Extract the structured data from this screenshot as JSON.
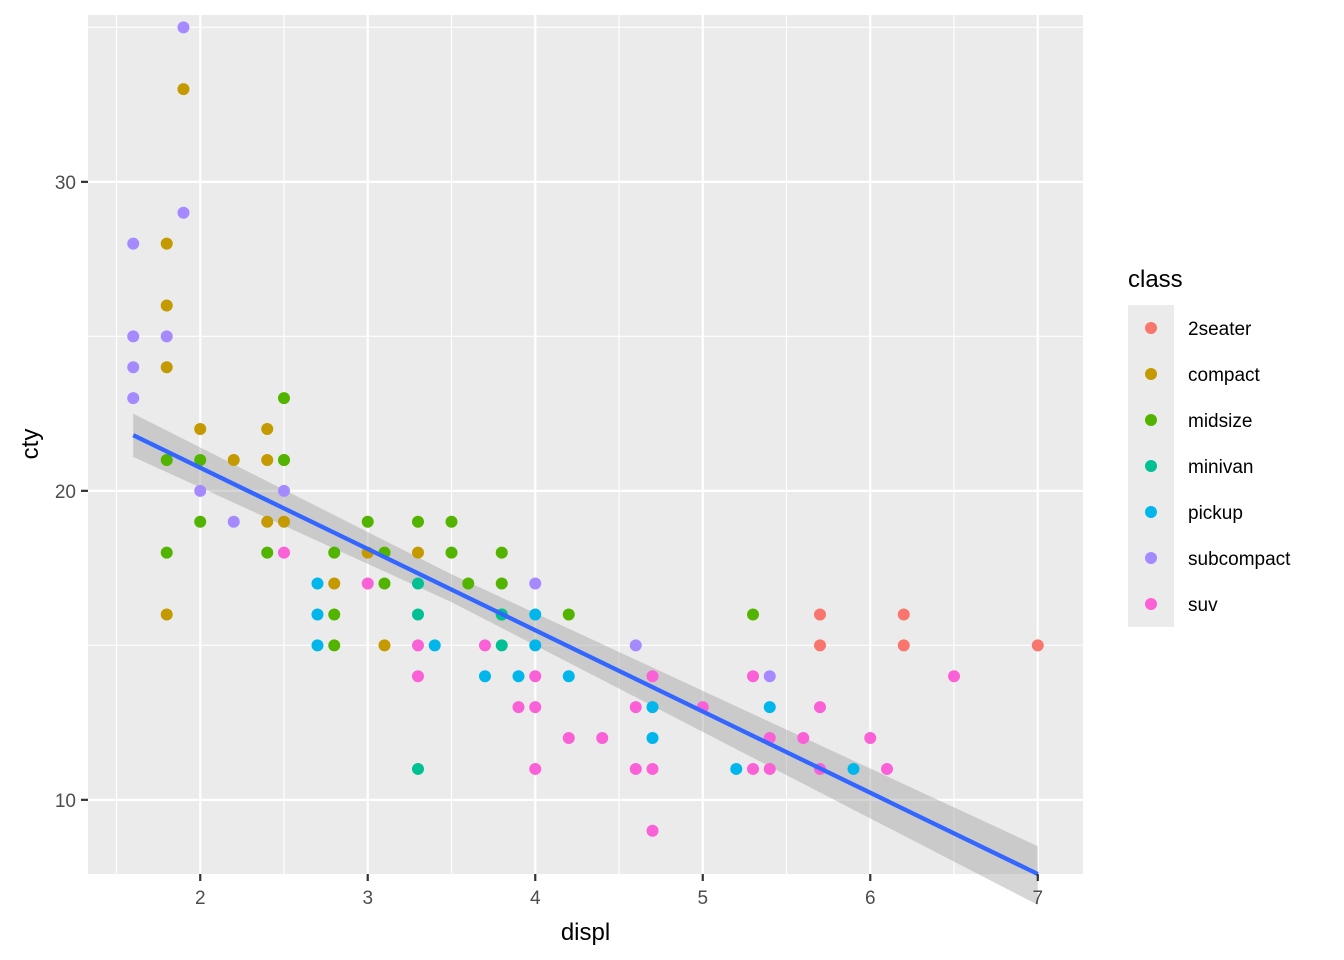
{
  "chart_data": {
    "type": "scatter",
    "xlabel": "displ",
    "ylabel": "cty",
    "xlim": [
      1.33,
      7.27
    ],
    "ylim": [
      7.6,
      35.4
    ],
    "x_ticks": [
      2,
      3,
      4,
      5,
      6,
      7
    ],
    "x_tick_labels": [
      "2",
      "3",
      "4",
      "5",
      "6",
      "7"
    ],
    "y_ticks": [
      10,
      20,
      30
    ],
    "y_tick_labels": [
      "10",
      "20",
      "30"
    ],
    "grid": true,
    "legend": {
      "title": "class",
      "placement": "right"
    },
    "series": [
      {
        "name": "2seater",
        "color": "#F8766D",
        "points": [
          [
            5.7,
            16
          ],
          [
            5.7,
            15
          ],
          [
            6.2,
            16
          ],
          [
            6.2,
            15
          ],
          [
            7.0,
            15
          ]
        ]
      },
      {
        "name": "compact",
        "color": "#C49A00",
        "points": [
          [
            1.8,
            28
          ],
          [
            1.8,
            26
          ],
          [
            1.8,
            24
          ],
          [
            1.8,
            16
          ],
          [
            1.9,
            33
          ],
          [
            2.0,
            22
          ],
          [
            2.2,
            21
          ],
          [
            2.4,
            22
          ],
          [
            2.4,
            21
          ],
          [
            2.4,
            19
          ],
          [
            2.5,
            21
          ],
          [
            2.5,
            19
          ],
          [
            2.8,
            17
          ],
          [
            3.0,
            18
          ],
          [
            3.1,
            15
          ],
          [
            3.3,
            18
          ]
        ]
      },
      {
        "name": "midsize",
        "color": "#53B400",
        "points": [
          [
            1.8,
            21
          ],
          [
            1.8,
            18
          ],
          [
            2.0,
            21
          ],
          [
            2.0,
            19
          ],
          [
            2.4,
            18
          ],
          [
            2.5,
            23
          ],
          [
            2.5,
            21
          ],
          [
            2.8,
            18
          ],
          [
            2.8,
            16
          ],
          [
            2.8,
            15
          ],
          [
            3.0,
            19
          ],
          [
            3.1,
            18
          ],
          [
            3.1,
            17
          ],
          [
            3.3,
            19
          ],
          [
            3.5,
            19
          ],
          [
            3.5,
            18
          ],
          [
            3.6,
            17
          ],
          [
            3.8,
            18
          ],
          [
            3.8,
            17
          ],
          [
            3.8,
            16
          ],
          [
            4.2,
            16
          ],
          [
            5.3,
            16
          ]
        ]
      },
      {
        "name": "minivan",
        "color": "#00C094",
        "points": [
          [
            3.3,
            17
          ],
          [
            3.3,
            16
          ],
          [
            3.3,
            11
          ],
          [
            3.8,
            15
          ],
          [
            3.8,
            16
          ]
        ]
      },
      {
        "name": "pickup",
        "color": "#00B6EB",
        "points": [
          [
            2.7,
            17
          ],
          [
            2.7,
            16
          ],
          [
            2.7,
            15
          ],
          [
            3.4,
            15
          ],
          [
            3.7,
            14
          ],
          [
            3.9,
            14
          ],
          [
            4.0,
            16
          ],
          [
            4.0,
            15
          ],
          [
            4.2,
            14
          ],
          [
            4.7,
            13
          ],
          [
            4.7,
            12
          ],
          [
            5.2,
            11
          ],
          [
            5.4,
            13
          ],
          [
            5.9,
            11
          ]
        ]
      },
      {
        "name": "subcompact",
        "color": "#A58AFF",
        "points": [
          [
            1.6,
            28
          ],
          [
            1.6,
            25
          ],
          [
            1.6,
            24
          ],
          [
            1.6,
            23
          ],
          [
            1.8,
            25
          ],
          [
            1.9,
            35
          ],
          [
            1.9,
            29
          ],
          [
            2.0,
            20
          ],
          [
            2.2,
            19
          ],
          [
            2.5,
            20
          ],
          [
            4.0,
            17
          ],
          [
            4.6,
            15
          ],
          [
            5.4,
            14
          ]
        ]
      },
      {
        "name": "suv",
        "color": "#FB61D7",
        "points": [
          [
            2.5,
            18
          ],
          [
            3.0,
            17
          ],
          [
            3.3,
            15
          ],
          [
            3.3,
            14
          ],
          [
            3.7,
            15
          ],
          [
            3.9,
            13
          ],
          [
            4.0,
            14
          ],
          [
            4.0,
            13
          ],
          [
            4.0,
            11
          ],
          [
            4.2,
            12
          ],
          [
            4.4,
            12
          ],
          [
            4.6,
            13
          ],
          [
            4.6,
            11
          ],
          [
            4.7,
            14
          ],
          [
            4.7,
            11
          ],
          [
            4.7,
            9
          ],
          [
            5.0,
            13
          ],
          [
            5.3,
            14
          ],
          [
            5.3,
            11
          ],
          [
            5.4,
            12
          ],
          [
            5.4,
            11
          ],
          [
            5.6,
            12
          ],
          [
            5.7,
            13
          ],
          [
            5.7,
            11
          ],
          [
            6.0,
            12
          ],
          [
            6.1,
            11
          ],
          [
            6.5,
            14
          ]
        ]
      }
    ],
    "trend": {
      "method": "linear",
      "color": "#3366FF",
      "band_color": "#999999",
      "line": [
        [
          1.6,
          21.8
        ],
        [
          7.0,
          7.6
        ]
      ],
      "band": [
        [
          1.6,
          22.5,
          21.1
        ],
        [
          3.5,
          17.3,
          16.4
        ],
        [
          7.0,
          8.5,
          6.6
        ]
      ]
    }
  }
}
